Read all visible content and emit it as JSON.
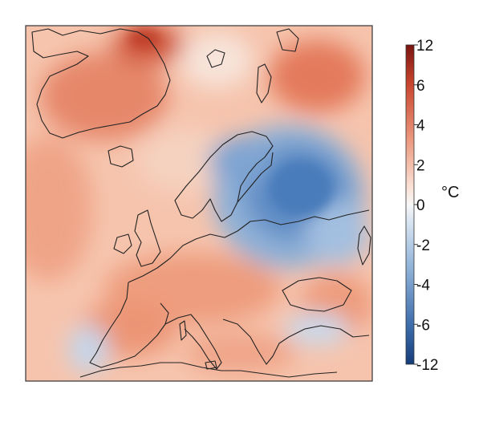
{
  "colorbar": {
    "unit": "°C",
    "tick_labels": [
      "12",
      "6",
      "4",
      "2",
      "0",
      "-2",
      "-4",
      "-6",
      "-12"
    ],
    "ticks": [
      12,
      6,
      4,
      2,
      0,
      -2,
      -4,
      -6,
      -12
    ],
    "color_warm": "#b8412a",
    "color_neutral": "#f7f7f7",
    "color_cold": "#2b5fa3"
  },
  "map": {
    "field": "temperature anomaly",
    "region": "Europe / North Atlantic / Greenland",
    "coastline_color": "#222222",
    "dominant_pattern": "warm anomaly over most of the domain, cold anomaly over Scandinavia and western Russia"
  }
}
